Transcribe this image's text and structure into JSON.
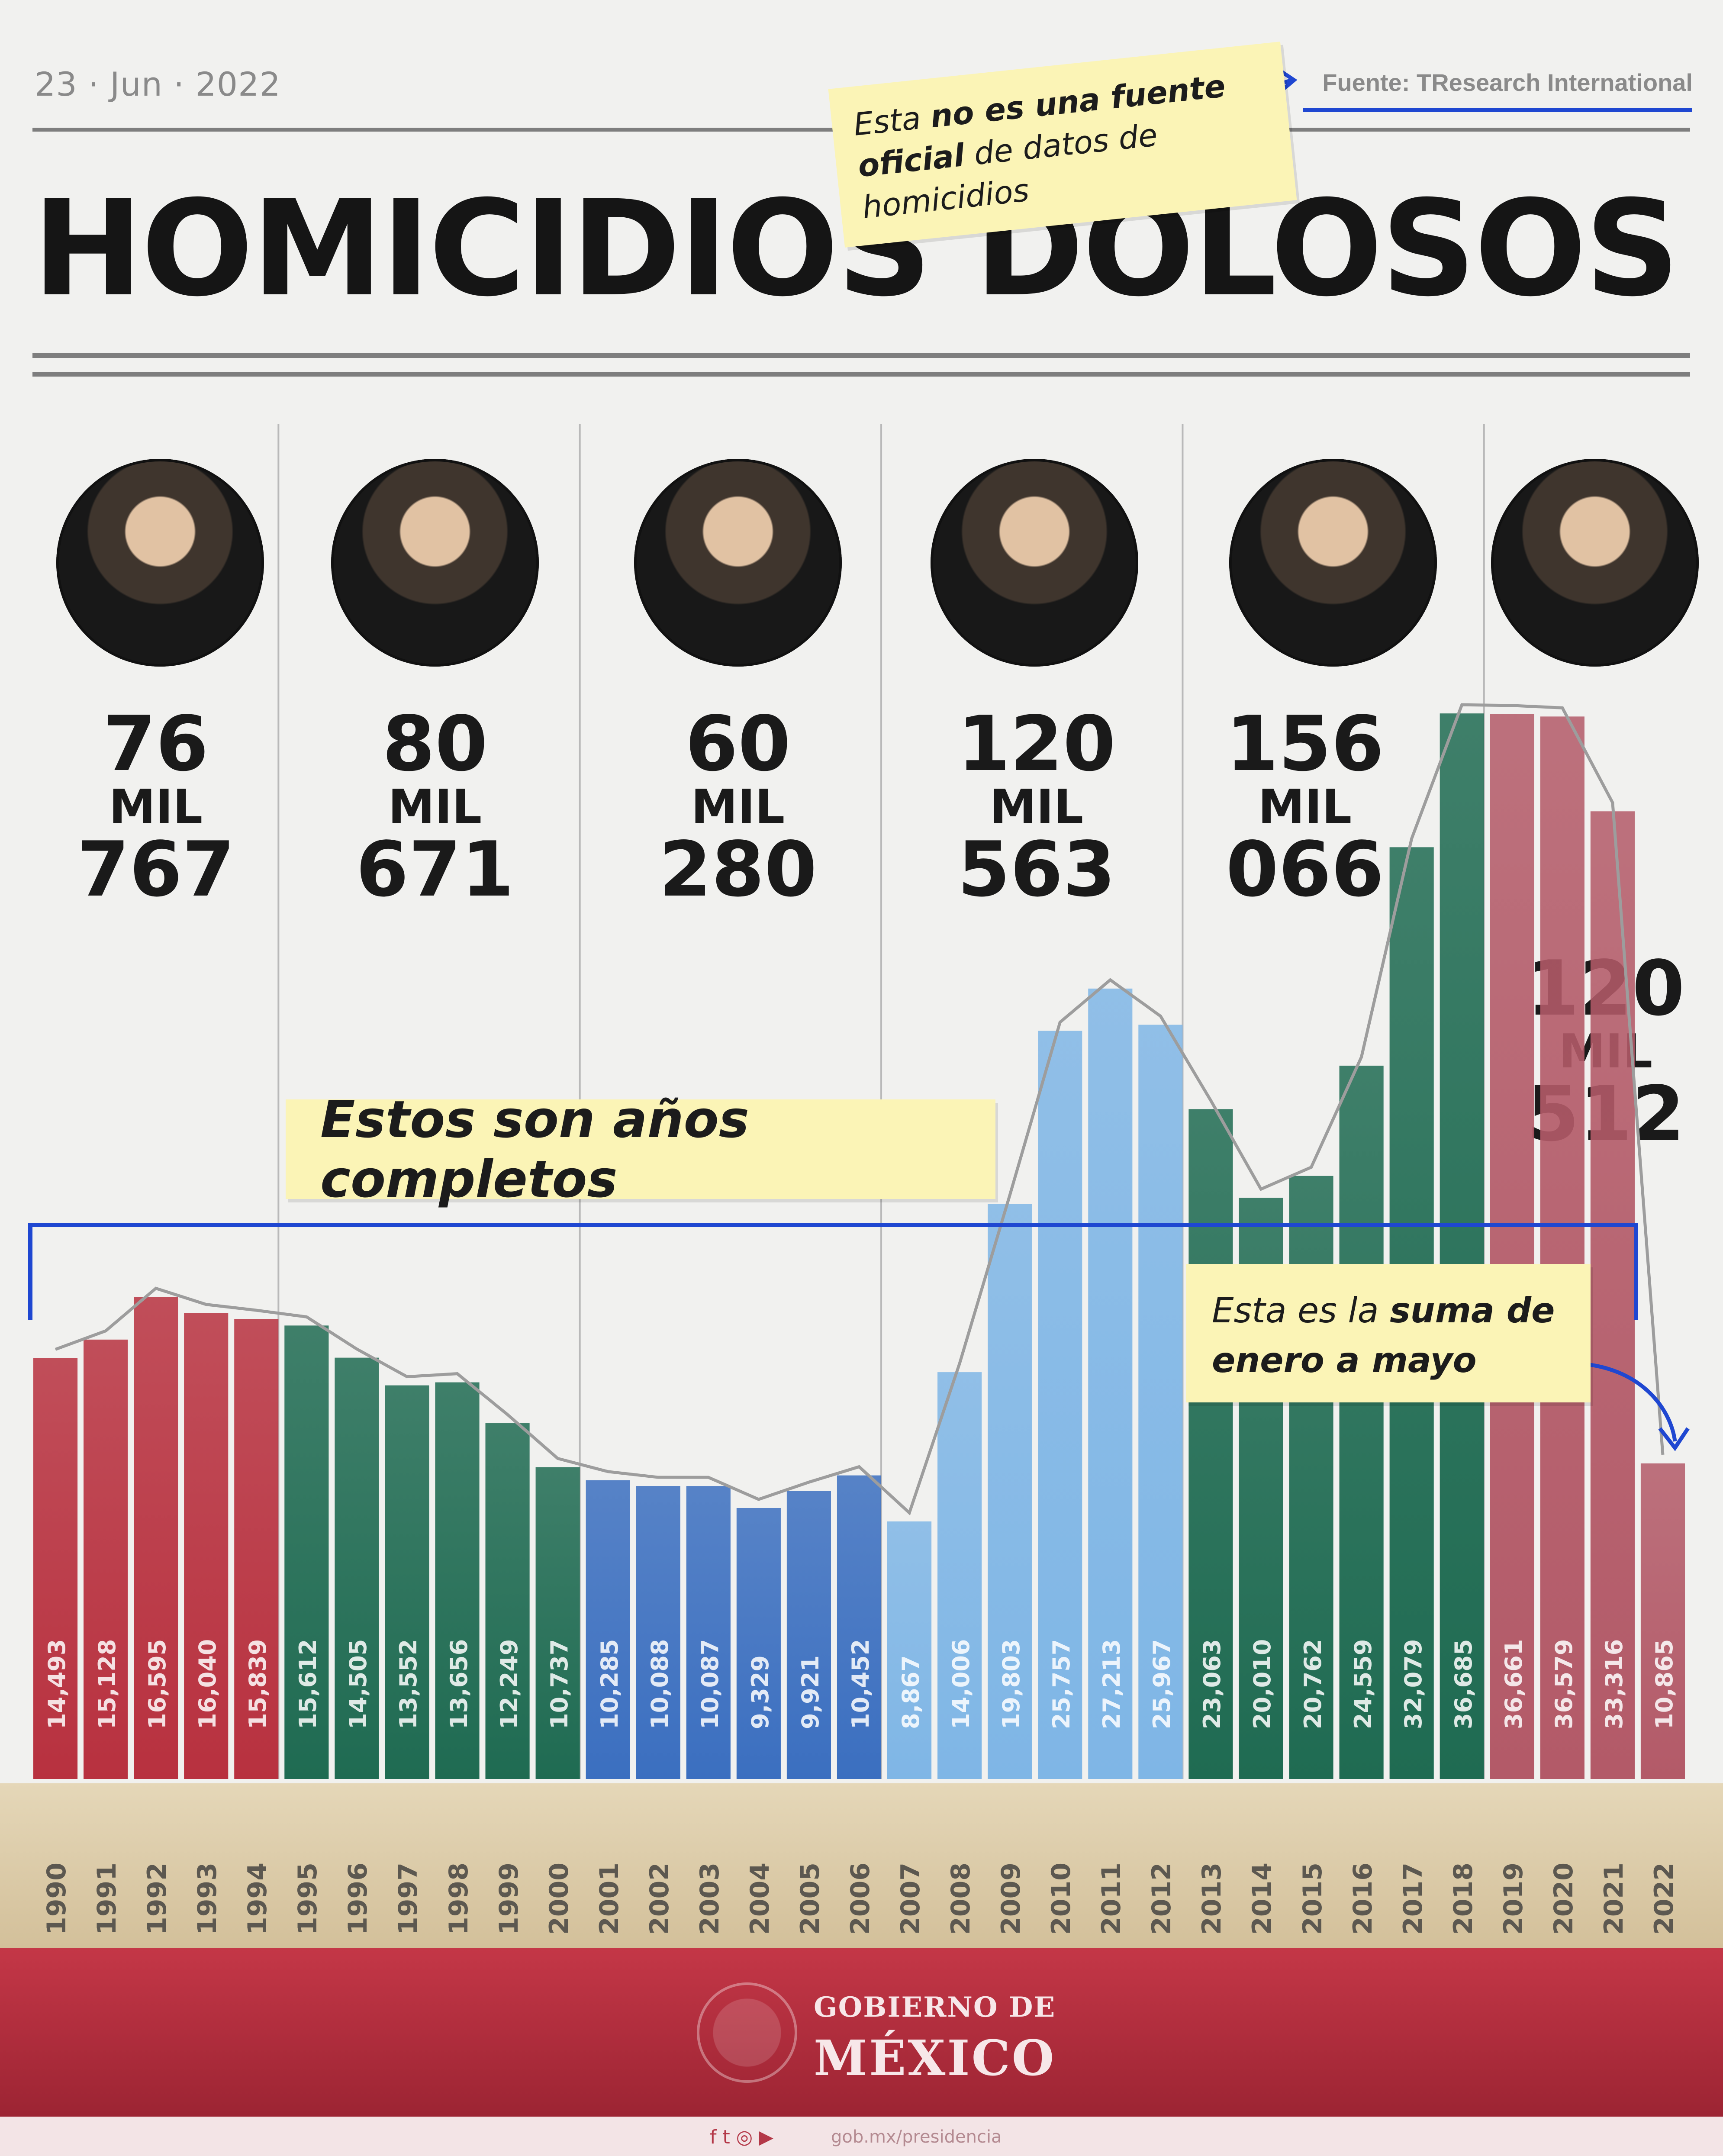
{
  "header": {
    "date": "23 · Jun · 2022",
    "source": "Fuente: TResearch International",
    "title": "HOMICIDIOS DOLOSOS"
  },
  "annotations": {
    "source_note": {
      "pre": "Esta ",
      "b1": "no es una fuente oficial",
      "post": " de datos de homicidios"
    },
    "complete_years": "Estos son años completos",
    "partial_year": {
      "pre": "Esta es la ",
      "b": "suma de enero a mayo"
    }
  },
  "presidents": [
    {
      "portrait": "president-portrait",
      "total_thousands": "76",
      "unit": "MIL",
      "total_rest": "767"
    },
    {
      "portrait": "president-portrait",
      "total_thousands": "80",
      "unit": "MIL",
      "total_rest": "671"
    },
    {
      "portrait": "president-portrait",
      "total_thousands": "60",
      "unit": "MIL",
      "total_rest": "280"
    },
    {
      "portrait": "president-portrait",
      "total_thousands": "120",
      "unit": "MIL",
      "total_rest": "563"
    },
    {
      "portrait": "president-portrait",
      "total_thousands": "156",
      "unit": "MIL",
      "total_rest": "066"
    },
    {
      "portrait": "president-portrait",
      "total_thousands": "120",
      "unit": "MIL",
      "total_rest": "512"
    }
  ],
  "chart_data": {
    "type": "bar",
    "categories": [
      "1990",
      "1991",
      "1992",
      "1993",
      "1994",
      "1995",
      "1996",
      "1997",
      "1998",
      "1999",
      "2000",
      "2001",
      "2002",
      "2003",
      "2004",
      "2005",
      "2006",
      "2007",
      "2008",
      "2009",
      "2010",
      "2011",
      "2012",
      "2013",
      "2014",
      "2015",
      "2016",
      "2017",
      "2018",
      "2019",
      "2020",
      "2021",
      "2022"
    ],
    "values": [
      14493,
      15128,
      16595,
      16040,
      15839,
      15612,
      14505,
      13552,
      13656,
      12249,
      10737,
      10285,
      10088,
      10087,
      9329,
      9921,
      10452,
      8867,
      14006,
      19803,
      25757,
      27213,
      25967,
      23063,
      20010,
      20762,
      24559,
      32079,
      36685,
      36661,
      36579,
      33316,
      10865
    ],
    "value_labels": [
      "14,493",
      "15,128",
      "16,595",
      "16,040",
      "15,839",
      "15,612",
      "14,505",
      "13,552",
      "13,656",
      "12,249",
      "10,737",
      "10,285",
      "10,088",
      "10,087",
      "9,329",
      "9,921",
      "10,452",
      "8,867",
      "14,006",
      "19,803",
      "25,757",
      "27,213",
      "25,967",
      "23,063",
      "20,010",
      "20,762",
      "24,559",
      "32,079",
      "36,685",
      "36,661",
      "36,579",
      "33,316",
      "10,865"
    ],
    "group_colors": [
      "#b8313f",
      "#1f6b52",
      "#3b6fc0",
      "#7fb6e6",
      "#1f6b52",
      "#b35a68"
    ],
    "ylim": [
      0,
      38000
    ]
  },
  "footer": {
    "gov_line1": "GOBIERNO DE",
    "gov_line2": "MÉXICO",
    "social_icons": "f t ◎ ▶",
    "url": "gob.mx/presidencia"
  }
}
